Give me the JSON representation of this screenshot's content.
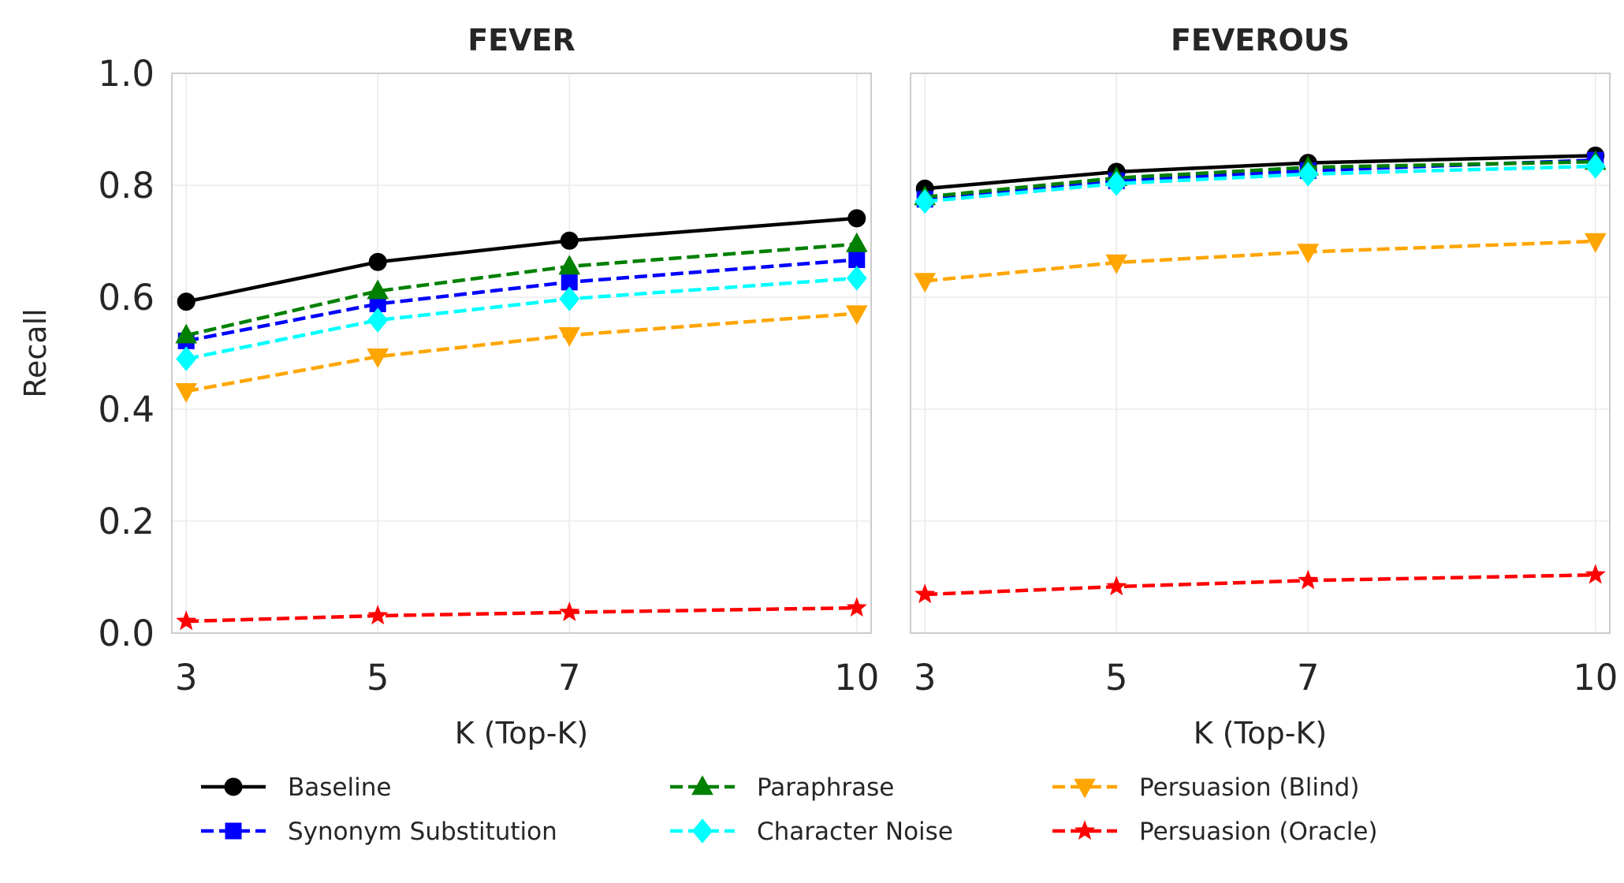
{
  "chart_data": [
    {
      "type": "line",
      "title": "FEVER",
      "xlabel": "K (Top-K)",
      "ylabel": "Recall",
      "x": [
        3,
        5,
        7,
        10
      ],
      "xticks": [
        "3",
        "5",
        "7",
        "10"
      ],
      "ylim": [
        0.0,
        1.0
      ],
      "yticks": [
        "0.0",
        "0.2",
        "0.4",
        "0.6",
        "0.8",
        "1.0"
      ],
      "grid": true,
      "series": [
        {
          "key": "baseline",
          "name": "Baseline",
          "values": [
            0.592,
            0.663,
            0.701,
            0.741
          ]
        },
        {
          "key": "synonym",
          "name": "Synonym Substitution",
          "values": [
            0.522,
            0.588,
            0.627,
            0.667
          ]
        },
        {
          "key": "paraphrase",
          "name": "Paraphrase",
          "values": [
            0.532,
            0.611,
            0.655,
            0.695
          ]
        },
        {
          "key": "noise",
          "name": "Character Noise",
          "values": [
            0.49,
            0.559,
            0.597,
            0.634
          ]
        },
        {
          "key": "blind",
          "name": "Persuasion (Blind)",
          "values": [
            0.432,
            0.494,
            0.532,
            0.571
          ]
        },
        {
          "key": "oracle",
          "name": "Persuasion (Oracle)",
          "values": [
            0.021,
            0.031,
            0.037,
            0.045
          ]
        }
      ]
    },
    {
      "type": "line",
      "title": "FEVEROUS",
      "xlabel": "K (Top-K)",
      "ylabel": "",
      "x": [
        3,
        5,
        7,
        10
      ],
      "xticks": [
        "3",
        "5",
        "7",
        "10"
      ],
      "ylim": [
        0.0,
        1.0
      ],
      "yticks": [],
      "grid": true,
      "series": [
        {
          "key": "baseline",
          "name": "Baseline",
          "values": [
            0.794,
            0.824,
            0.84,
            0.853
          ]
        },
        {
          "key": "synonym",
          "name": "Synonym Substitution",
          "values": [
            0.775,
            0.808,
            0.826,
            0.845
          ]
        },
        {
          "key": "paraphrase",
          "name": "Paraphrase",
          "values": [
            0.779,
            0.813,
            0.832,
            0.842
          ]
        },
        {
          "key": "noise",
          "name": "Character Noise",
          "values": [
            0.771,
            0.803,
            0.82,
            0.834
          ]
        },
        {
          "key": "blind",
          "name": "Persuasion (Blind)",
          "values": [
            0.629,
            0.662,
            0.681,
            0.7
          ]
        },
        {
          "key": "oracle",
          "name": "Persuasion (Oracle)",
          "values": [
            0.069,
            0.083,
            0.094,
            0.104
          ]
        }
      ]
    }
  ],
  "series_styles": {
    "baseline": {
      "color": "#000000",
      "marker": "circle",
      "dash": "solid"
    },
    "synonym": {
      "color": "#0000ff",
      "marker": "square",
      "dash": "dashed"
    },
    "paraphrase": {
      "color": "#008000",
      "marker": "triangle-up",
      "dash": "dashed"
    },
    "noise": {
      "color": "#00ffff",
      "marker": "diamond",
      "dash": "dashed"
    },
    "blind": {
      "color": "#ffa500",
      "marker": "triangle-down",
      "dash": "dashed"
    },
    "oracle": {
      "color": "#ff0000",
      "marker": "star",
      "dash": "dashed"
    }
  },
  "legend": {
    "position": "bottom",
    "order": [
      "baseline",
      "synonym",
      "paraphrase",
      "noise",
      "blind",
      "oracle"
    ]
  }
}
